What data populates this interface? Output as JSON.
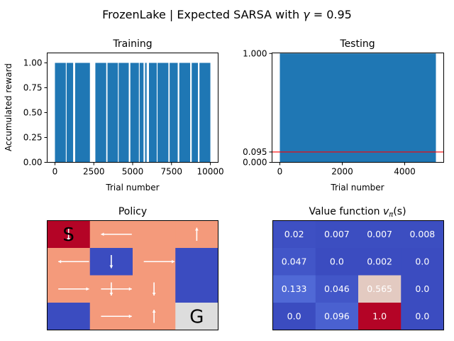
{
  "figure": {
    "suptitle_prefix": "FrozenLake | Expected SARSA with ",
    "suptitle_gamma_symbol": "γ",
    "suptitle_gamma_value": " = 0.95"
  },
  "chart_data": [
    {
      "id": "training",
      "type": "bar",
      "title": "Training",
      "xlabel": "Trial number",
      "ylabel": "Accumulated reward",
      "xlim": [
        -500,
        10500
      ],
      "ylim": [
        0,
        1.1
      ],
      "xticks": [
        0,
        2500,
        5000,
        7500,
        10000
      ],
      "xtick_labels": [
        "0",
        "2500",
        "5000",
        "7500",
        "10000"
      ],
      "yticks": [
        0,
        0.25,
        0.5,
        0.75,
        1.0
      ],
      "ytick_labels": [
        "0.00",
        "0.25",
        "0.50",
        "0.75",
        "1.00"
      ],
      "color": "#1f77b4",
      "reward_one_intervals": [
        [
          0,
          700
        ],
        [
          750,
          1170
        ],
        [
          1300,
          2250
        ],
        [
          2600,
          3300
        ],
        [
          3380,
          4050
        ],
        [
          4100,
          4750
        ],
        [
          4850,
          5400
        ],
        [
          5450,
          5700
        ],
        [
          5800,
          5900
        ],
        [
          6050,
          6550
        ],
        [
          6600,
          7300
        ],
        [
          7380,
          7900
        ],
        [
          8000,
          8700
        ],
        [
          8800,
          9200
        ],
        [
          9300,
          10000
        ]
      ]
    },
    {
      "id": "testing",
      "type": "bar",
      "title": "Testing",
      "xlabel": "Trial number",
      "xlim": [
        -250,
        5250
      ],
      "ylim": [
        0,
        1.005
      ],
      "xticks": [
        0,
        2000,
        4000
      ],
      "xtick_labels": [
        "0",
        "2000",
        "4000"
      ],
      "yticks": [
        0,
        0.095,
        1.0
      ],
      "ytick_labels": [
        "0.000",
        "0.095",
        "1.000"
      ],
      "color": "#1f77b4",
      "reward_one_intervals": [
        [
          0,
          5000
        ]
      ],
      "hline": 0.095,
      "hline_color": "#ff0000"
    },
    {
      "id": "policy",
      "type": "heatmap",
      "title": "Policy",
      "rows": 4,
      "cols": 4,
      "cell_colors": [
        [
          "#b40426",
          "#f49a7b",
          "#f49a7b",
          "#f49a7b"
        ],
        [
          "#f49a7b",
          "#3b4cc0",
          "#f49a7b",
          "#3b4cc0"
        ],
        [
          "#f49a7b",
          "#f49a7b",
          "#f49a7b",
          "#3b4cc0"
        ],
        [
          "#3b4cc0",
          "#f49a7b",
          "#f49a7b",
          "#dddddd"
        ]
      ],
      "letters": [
        {
          "text": "S",
          "row": 0,
          "col": 0
        },
        {
          "text": "G",
          "row": 3,
          "col": 3
        }
      ],
      "arrows": [
        {
          "row": 0,
          "col": 0,
          "dir": "down"
        },
        {
          "row": 0,
          "col": 1,
          "dir": "left"
        },
        {
          "row": 0,
          "col": 3,
          "dir": "up"
        },
        {
          "row": 1,
          "col": 0,
          "dir": "left"
        },
        {
          "row": 1,
          "col": 1,
          "dir": "down"
        },
        {
          "row": 1,
          "col": 2,
          "dir": "right"
        },
        {
          "row": 2,
          "col": 0,
          "dir": "right"
        },
        {
          "row": 2,
          "col": 1,
          "dir": "down"
        },
        {
          "row": 2,
          "col": 2,
          "dir": "down"
        },
        {
          "row": 2,
          "col": 1,
          "dir": "right"
        },
        {
          "row": 3,
          "col": 1,
          "dir": "right"
        },
        {
          "row": 3,
          "col": 2,
          "dir": "up"
        }
      ],
      "arrow_color": "#ffffff"
    },
    {
      "id": "value",
      "type": "heatmap",
      "title_prefix": "Value function ",
      "title_v": "v",
      "title_pi": "π",
      "title_suffix": "(s)",
      "rows": 4,
      "cols": 4,
      "values": [
        [
          0.02,
          0.007,
          0.007,
          0.008
        ],
        [
          0.047,
          0.0,
          0.002,
          0.0
        ],
        [
          0.133,
          0.046,
          0.565,
          0.0
        ],
        [
          0.0,
          0.096,
          1.0,
          0.0
        ]
      ],
      "labels": [
        [
          "0.02",
          "0.007",
          "0.007",
          "0.008"
        ],
        [
          "0.047",
          "0.0",
          "0.002",
          "0.0"
        ],
        [
          "0.133",
          "0.046",
          "0.565",
          "0.0"
        ],
        [
          "0.0",
          "0.096",
          "1.0",
          "0.0"
        ]
      ],
      "colormap": "coolwarm",
      "text_color": "#ffffff"
    }
  ]
}
